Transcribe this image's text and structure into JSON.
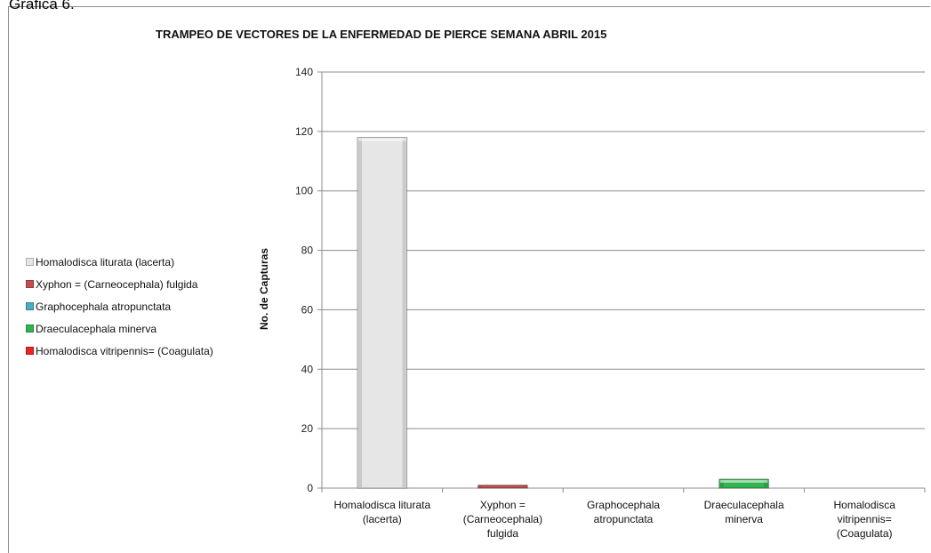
{
  "cut_title": "Grafica 6.",
  "chart_data": {
    "type": "bar",
    "title": "TRAMPEO DE VECTORES DE LA ENFERMEDAD DE PIERCE SEMANA ABRIL 2015",
    "xlabel": "",
    "ylabel": "No. de Capturas",
    "ylim": [
      0,
      140
    ],
    "yticks": [
      0,
      20,
      40,
      60,
      80,
      100,
      120,
      140
    ],
    "grid": true,
    "legend_position": "left",
    "categories": [
      [
        "Homalodisca liturata",
        "(lacerta)"
      ],
      [
        "Xyphon =",
        "(Carneocephala)",
        "fulgida"
      ],
      [
        "Graphocephala",
        "atropunctata"
      ],
      [
        "Draeculacephala",
        "minerva"
      ],
      [
        "Homalodisca",
        "vitripennis=",
        "(Coagulata)"
      ]
    ],
    "values": [
      118,
      1,
      0,
      3,
      0
    ],
    "colors": [
      "#e6e6e6",
      "#c0504d",
      "#4bacc6",
      "#2fb44f",
      "#e82424"
    ],
    "legend": [
      "Homalodisca liturata  (lacerta)",
      "Xyphon = (Carneocephala) fulgida",
      "Graphocephala atropunctata",
      "Draeculacephala minerva",
      "Homalodisca vitripennis= (Coagulata)"
    ]
  }
}
